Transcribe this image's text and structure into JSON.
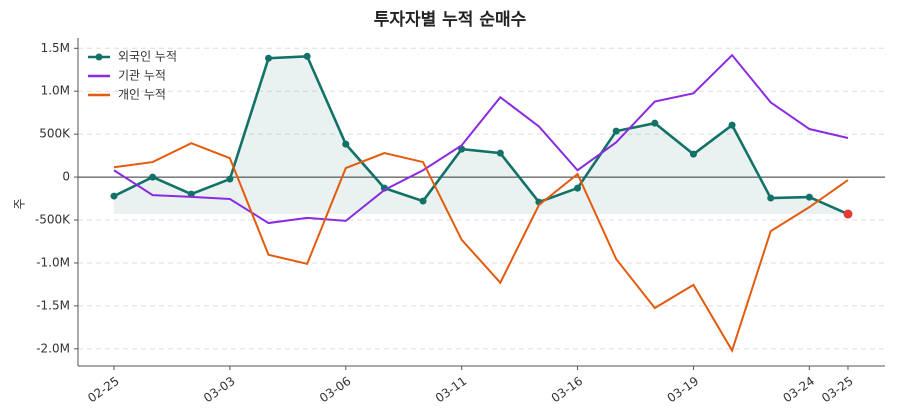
{
  "chart_data": {
    "type": "line",
    "title": "투자자별 누적 순매수",
    "ylabel": "주",
    "categories": [
      "02-25",
      null,
      null,
      "03-03",
      null,
      null,
      "03-06",
      null,
      null,
      "03-11",
      null,
      null,
      "03-16",
      null,
      null,
      "03-19",
      null,
      null,
      "03-24",
      "03-25"
    ],
    "ylim": [
      -2200000,
      1620000
    ],
    "yticks": [
      {
        "value": -2000000,
        "label": "-2.0M"
      },
      {
        "value": -1500000,
        "label": "-1.5M"
      },
      {
        "value": -1000000,
        "label": "-1.0M"
      },
      {
        "value": -500000,
        "label": "-500K"
      },
      0,
      {
        "value": 500000,
        "label": "500K"
      },
      {
        "value": 1000000,
        "label": "1.0M"
      },
      {
        "value": 1500000,
        "label": "1.5M"
      }
    ],
    "grid": true,
    "legend": "upper left",
    "last_point_color": "#e53935",
    "series": [
      {
        "name": "외국인 누적",
        "color": "#137268",
        "marker": true,
        "fill": true,
        "values": [
          -221000,
          0,
          -198000,
          -23000,
          1384000,
          1407000,
          384000,
          -128000,
          -279000,
          326000,
          279000,
          -291000,
          -128000,
          535000,
          628000,
          267000,
          605000,
          -244000,
          -233000,
          -430000
        ]
      },
      {
        "name": "기관 누적",
        "color": "#8a2be2",
        "marker": false,
        "fill": false,
        "values": [
          80000,
          -210000,
          -230000,
          -255000,
          -535000,
          -475000,
          -510000,
          -150000,
          80000,
          370000,
          930000,
          590000,
          80000,
          405000,
          880000,
          975000,
          1420000,
          870000,
          560000,
          455000
        ]
      },
      {
        "name": "개인 누적",
        "color": "#e35b0f",
        "marker": false,
        "fill": false,
        "values": [
          115000,
          175000,
          395000,
          220000,
          -905000,
          -1010000,
          105000,
          280000,
          175000,
          -730000,
          -1230000,
          -325000,
          35000,
          -955000,
          -1525000,
          -1255000,
          -2020000,
          -630000,
          -350000,
          -35000
        ]
      }
    ]
  }
}
